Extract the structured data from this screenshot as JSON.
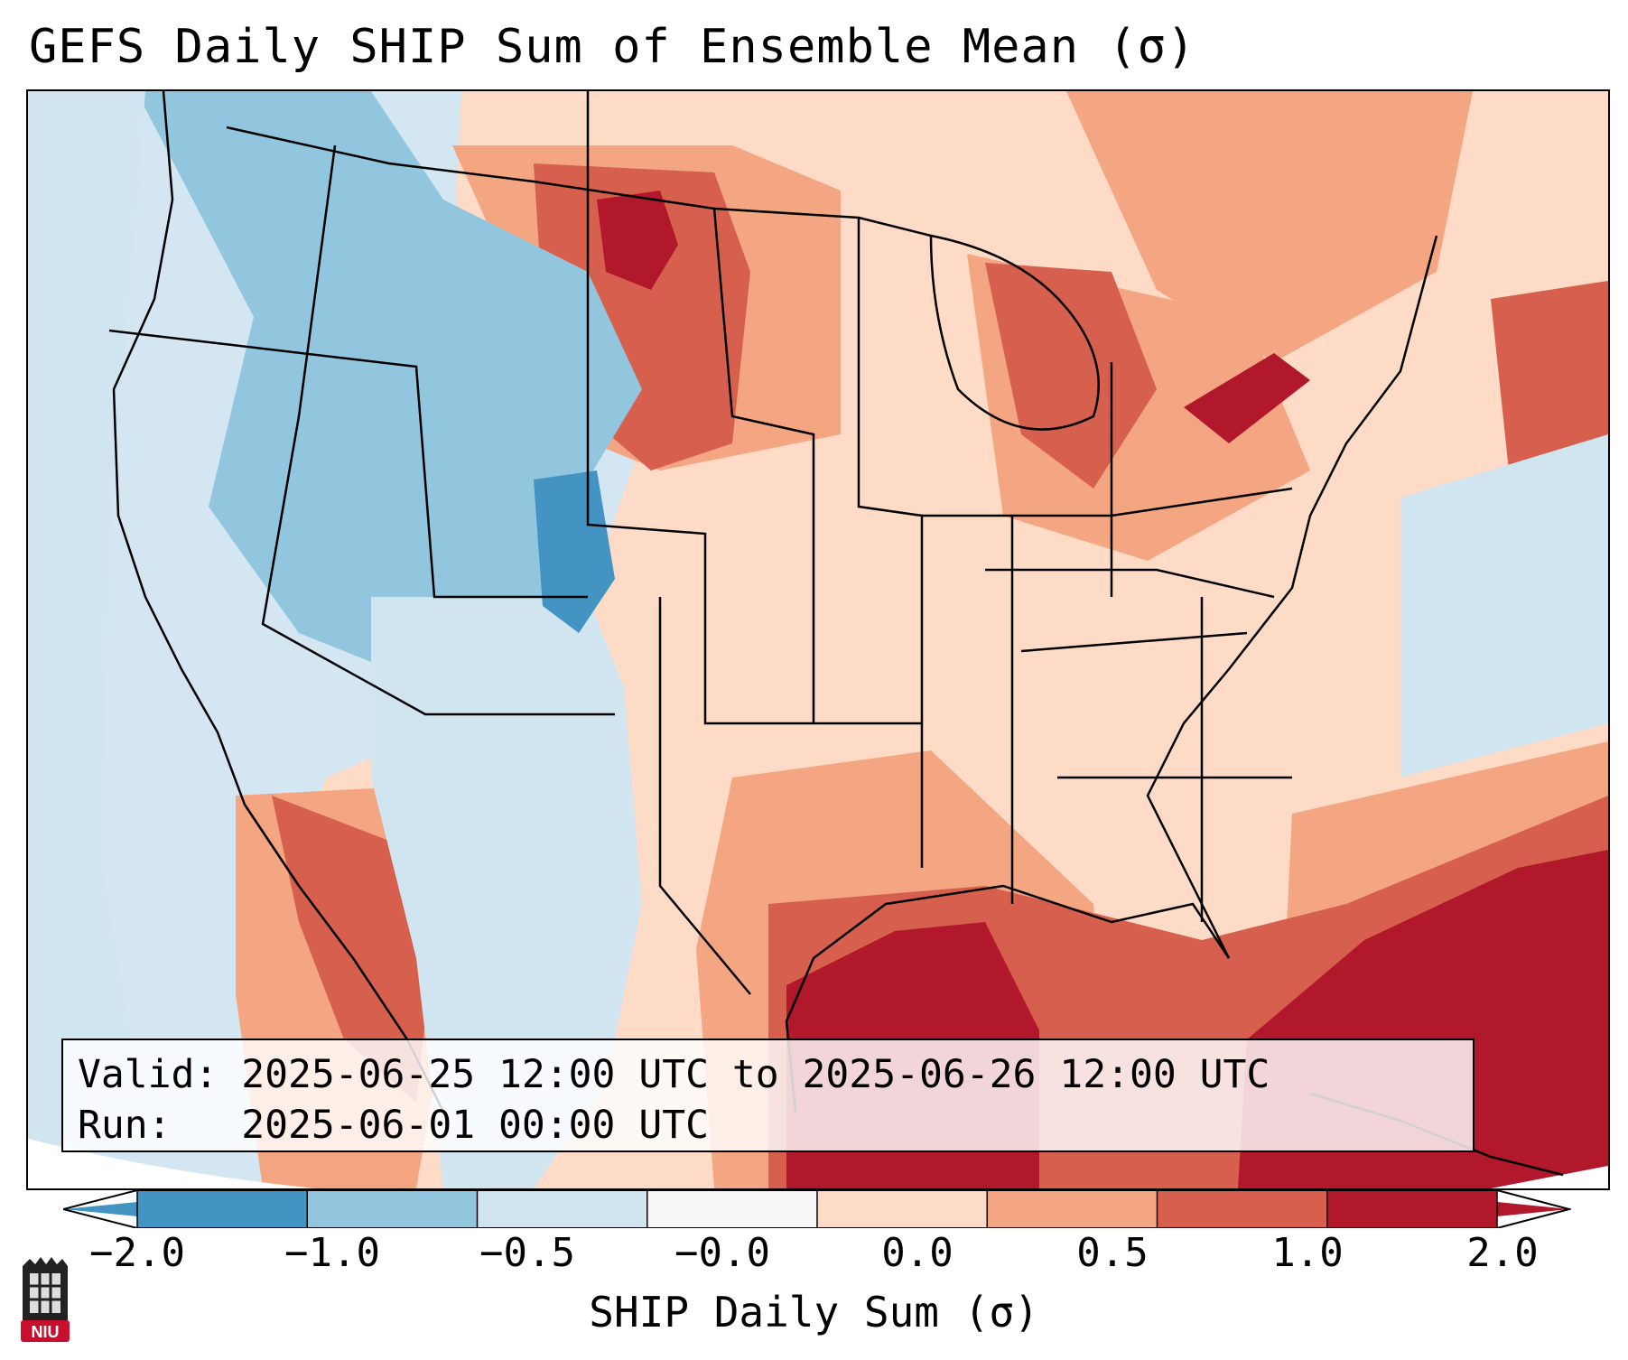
{
  "title": "GEFS Daily SHIP Sum of Ensemble Mean (σ)",
  "info": {
    "valid_line": "Valid: 2025-06-25 12:00 UTC to 2025-06-26 12:00 UTC",
    "run_line": "Run:   2025-06-01 00:00 UTC"
  },
  "colorbar": {
    "label": "SHIP Daily Sum (σ)",
    "ticks": [
      "−2.0",
      "−1.0",
      "−0.5",
      "−0.0",
      "0.0",
      "0.5",
      "1.0",
      "2.0"
    ],
    "colors": [
      "#4393c3",
      "#92c5de",
      "#d1e5f0",
      "#f7f7f7",
      "#fddbc7",
      "#f4a582",
      "#d6604d",
      "#b2182b"
    ],
    "extend": "both"
  },
  "legend_colors": {
    "strong_negative": "#4393c3",
    "negative": "#92c5de",
    "slight_negative": "#d1e5f0",
    "neutral": "#f7f7f7",
    "slight_positive": "#fddbc7",
    "positive": "#f4a582",
    "strong_positive": "#d6604d",
    "extreme_positive": "#b2182b"
  },
  "logo": {
    "text": "NIU"
  }
}
